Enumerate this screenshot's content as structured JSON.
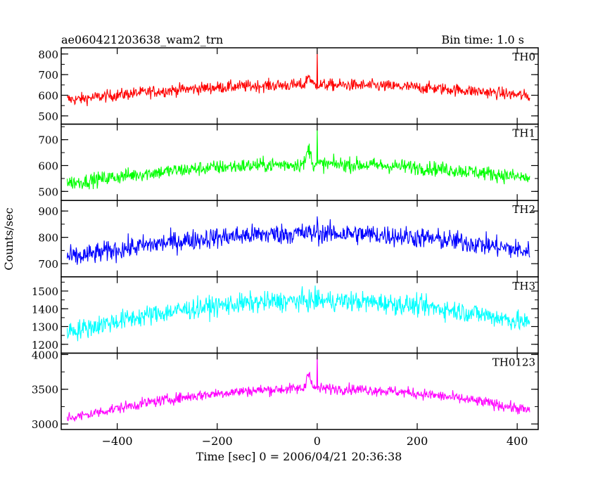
{
  "chart_data": {
    "type": "line",
    "title": "ae060421203638_wam2_trn",
    "bin_time": "Bin time: 1.0 s",
    "xlabel": "Time [sec] 0 = 2006/04/21 20:36:38",
    "ylabel": "Counts/sec",
    "xlim": [
      -512,
      442
    ],
    "x_ticks": [
      -400,
      -200,
      0,
      200,
      400
    ],
    "x_tick_labels": [
      "−400",
      "−200",
      "0",
      "200",
      "400"
    ],
    "x_range": [
      -500,
      425
    ],
    "panels": [
      {
        "name": "TH0",
        "color": "#ff0000",
        "ylim": [
          460,
          830
        ],
        "ticks": [
          500,
          600,
          700,
          800
        ],
        "base": 580,
        "peak": 650,
        "noise": 28,
        "flare": 45,
        "spike": 190,
        "flare_at": -17
      },
      {
        "name": "TH1",
        "color": "#00ff00",
        "ylim": [
          465,
          760
        ],
        "ticks": [
          500,
          600,
          700
        ],
        "base": 535,
        "peak": 605,
        "noise": 27,
        "flare": 60,
        "spike": 120,
        "flare_at": -17
      },
      {
        "name": "TH2",
        "color": "#0000ff",
        "ylim": [
          650,
          940
        ],
        "ticks": [
          700,
          800,
          900
        ],
        "base": 725,
        "peak": 815,
        "noise": 38,
        "flare": 0,
        "spike": 80,
        "flare_at": -17
      },
      {
        "name": "TH3",
        "color": "#00ffff",
        "ylim": [
          1150,
          1580
        ],
        "ticks": [
          1200,
          1300,
          1400,
          1500
        ],
        "base": 1280,
        "peak": 1445,
        "noise": 55,
        "flare": 0,
        "spike": 70,
        "flare_at": -17
      },
      {
        "name": "TH0123",
        "color": "#ff00ff",
        "ylim": [
          2920,
          4020
        ],
        "ticks": [
          3000,
          3500,
          4000
        ],
        "tick_labels": [
          "3000",
          "3500",
          "4000"
        ],
        "base": 3100,
        "peak": 3510,
        "noise": 75,
        "flare": 250,
        "spike": 520,
        "flare_at": -17
      }
    ]
  }
}
